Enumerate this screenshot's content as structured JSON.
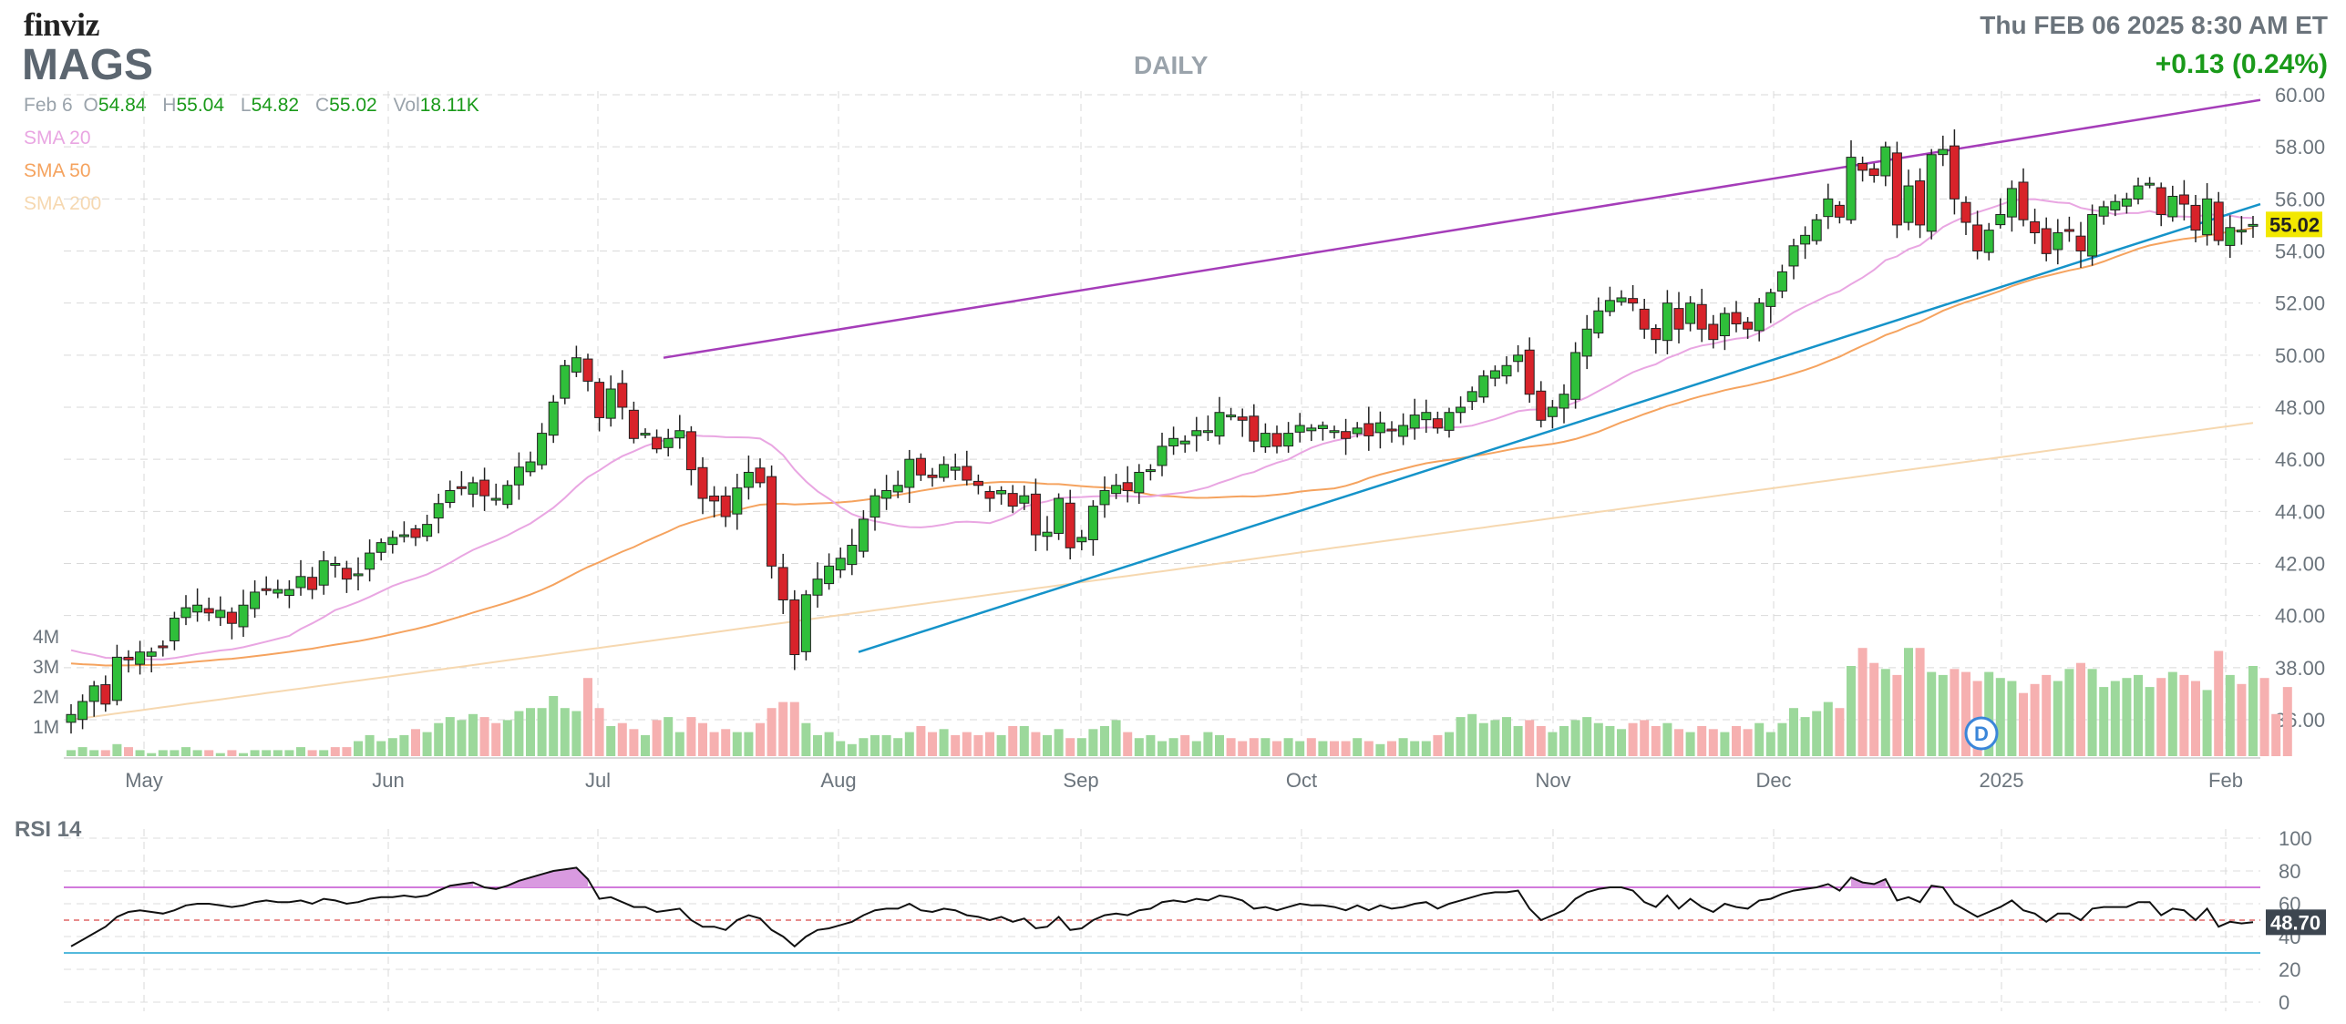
{
  "header": {
    "logo": "finviz",
    "ticker": "MAGS",
    "period": "DAILY",
    "datetime": "Thu FEB 06 2025 8:30 AM ET",
    "change": "+0.13 (0.24%)",
    "ohlc": {
      "date": "Feb 6",
      "open": "54.84",
      "high": "55.04",
      "low": "54.82",
      "close": "55.02",
      "volume": "18.11K"
    }
  },
  "indicators": [
    {
      "label": "SMA 20",
      "color": "#e9a6e2"
    },
    {
      "label": "SMA 50",
      "color": "#f5a35f"
    },
    {
      "label": "SMA 200",
      "color": "#f6d8b0"
    }
  ],
  "chart_data": [
    {
      "type": "candlestick",
      "title": "MAGS",
      "subtitle": "DAILY",
      "x_ticks": [
        "May",
        "Jun",
        "Jul",
        "Aug",
        "Sep",
        "Oct",
        "Nov",
        "Dec",
        "2025",
        "Feb"
      ],
      "y_ticks": [
        "36.00",
        "38.00",
        "40.00",
        "42.00",
        "44.00",
        "46.00",
        "48.00",
        "50.00",
        "52.00",
        "54.00",
        "56.00",
        "58.00",
        "60.00"
      ],
      "ylim": [
        35,
        61
      ],
      "last_price": "55.02",
      "closes": [
        36.2,
        36.7,
        37.3,
        36.6,
        38.4,
        38.3,
        38.6,
        38.6,
        38.8,
        39.9,
        40.3,
        40.4,
        40.1,
        40.2,
        39.7,
        40.4,
        40.9,
        41.0,
        41.0,
        41.0,
        41.5,
        41.0,
        42.1,
        42.0,
        41.4,
        41.6,
        42.4,
        42.8,
        43.0,
        43.1,
        43.0,
        43.5,
        44.3,
        44.8,
        44.9,
        45.1,
        44.6,
        44.5,
        45.0,
        45.7,
        45.9,
        47.0,
        48.2,
        49.6,
        49.9,
        49.0,
        47.6,
        48.7,
        48.0,
        46.8,
        47.0,
        46.4,
        46.8,
        47.1,
        45.6,
        44.5,
        44.4,
        43.8,
        44.9,
        45.5,
        45.1,
        41.9,
        40.6,
        38.5,
        40.8,
        41.4,
        41.9,
        42.2,
        42.7,
        43.7,
        44.6,
        44.8,
        45.0,
        46.0,
        45.4,
        45.3,
        45.8,
        45.7,
        45.2,
        45.0,
        44.5,
        44.8,
        44.2,
        44.6,
        43.1,
        43.2,
        44.5,
        42.6,
        43.0,
        44.2,
        44.8,
        45.0,
        44.8,
        45.5,
        45.6,
        46.5,
        46.8,
        46.7,
        47.1,
        47.1,
        47.8,
        47.7,
        47.5,
        46.7,
        47.0,
        46.5,
        47.0,
        47.3,
        47.2,
        47.3,
        47.1,
        46.8,
        47.2,
        46.9,
        47.4,
        47.1,
        47.3,
        47.7,
        47.8,
        47.2,
        47.8,
        48.0,
        48.6,
        49.2,
        49.4,
        49.6,
        50.0,
        48.5,
        47.5,
        48.0,
        48.5,
        50.1,
        51.0,
        51.7,
        52.1,
        52.2,
        52.0,
        51.0,
        50.6,
        52.0,
        51.0,
        52.0,
        51.0,
        50.6,
        51.6,
        51.2,
        51.0,
        52.0,
        52.4,
        53.2,
        54.2,
        54.6,
        55.2,
        56.0,
        55.3,
        57.6,
        57.1,
        56.9,
        58.0,
        55.0,
        56.5,
        55.0,
        57.7,
        57.9,
        56.0,
        55.1,
        54.0,
        54.8,
        55.4,
        56.4,
        55.2,
        54.7,
        53.9,
        54.7,
        54.8,
        54.0,
        55.4,
        55.7,
        55.9,
        56.0,
        56.5,
        56.6,
        55.4,
        56.1,
        55.8,
        54.8,
        56.0,
        54.4,
        54.9,
        54.8,
        55.02
      ],
      "indicators": {
        "sma20": {
          "start": 38.8,
          "end": 55.0
        },
        "sma50": {
          "start": 38.2,
          "end": 54.6
        },
        "sma200": {
          "start": 36.0,
          "end": 47.4
        }
      },
      "trendlines": [
        {
          "color": "#a53db9",
          "from": "Jul",
          "from_price": 49.9,
          "to": "Feb",
          "to_price": 59.8
        },
        {
          "color": "#1593c9",
          "from": "Aug",
          "from_price": 38.6,
          "to": "Feb",
          "to_price": 55.8
        }
      ]
    },
    {
      "type": "bar",
      "title": "Volume",
      "y_ticks": [
        "4M",
        "3M",
        "2M",
        "1M"
      ],
      "ylim": [
        0,
        4.5
      ],
      "volumes_m": [
        0.2,
        0.3,
        0.2,
        0.2,
        0.4,
        0.3,
        0.2,
        0.1,
        0.2,
        0.2,
        0.3,
        0.2,
        0.2,
        0.1,
        0.2,
        0.1,
        0.2,
        0.2,
        0.2,
        0.2,
        0.3,
        0.2,
        0.2,
        0.3,
        0.3,
        0.5,
        0.7,
        0.5,
        0.6,
        0.7,
        0.9,
        0.8,
        1.1,
        1.3,
        1.2,
        1.4,
        1.3,
        1.1,
        1.2,
        1.5,
        1.6,
        1.6,
        2.0,
        1.6,
        1.5,
        2.6,
        1.6,
        1.0,
        1.1,
        0.9,
        0.7,
        1.2,
        1.3,
        0.8,
        1.3,
        1.1,
        0.8,
        0.9,
        0.8,
        0.8,
        1.1,
        1.6,
        1.8,
        1.8,
        1.1,
        0.7,
        0.8,
        0.5,
        0.4,
        0.6,
        0.7,
        0.7,
        0.6,
        0.8,
        1.0,
        0.8,
        0.9,
        0.7,
        0.8,
        0.7,
        0.8,
        0.7,
        1.0,
        1.0,
        0.8,
        0.7,
        0.9,
        0.6,
        0.6,
        0.9,
        1.0,
        1.2,
        0.8,
        0.6,
        0.7,
        0.5,
        0.6,
        0.7,
        0.5,
        0.8,
        0.7,
        0.6,
        0.5,
        0.6,
        0.6,
        0.5,
        0.6,
        0.5,
        0.6,
        0.5,
        0.5,
        0.5,
        0.6,
        0.5,
        0.4,
        0.5,
        0.6,
        0.5,
        0.5,
        0.7,
        0.8,
        1.3,
        1.4,
        1.1,
        1.2,
        1.3,
        1.0,
        1.2,
        1.0,
        0.8,
        1.0,
        1.2,
        1.3,
        1.1,
        1.0,
        0.9,
        1.1,
        1.2,
        1.0,
        1.1,
        0.9,
        0.8,
        1.0,
        0.9,
        0.8,
        1.0,
        0.9,
        1.1,
        0.8,
        1.1,
        1.6,
        1.3,
        1.5,
        1.8,
        1.6,
        3.0,
        3.6,
        3.1,
        2.9,
        2.7,
        3.6,
        3.6,
        2.8,
        2.7,
        2.9,
        2.8,
        2.5,
        2.8,
        2.6,
        2.5,
        2.1,
        2.4,
        2.7,
        2.5,
        2.9,
        3.1,
        2.9,
        2.3,
        2.5,
        2.6,
        2.7,
        2.3,
        2.6,
        2.8,
        2.7,
        2.5,
        2.2,
        3.5,
        2.7,
        2.4,
        3.0,
        2.6,
        1.4,
        2.3
      ]
    },
    {
      "type": "line",
      "title": "RSI 14",
      "y_ticks": [
        "100",
        "80",
        "60",
        "40",
        "20",
        "0"
      ],
      "ylim": [
        0,
        100
      ],
      "last_value": "48.70",
      "levels": {
        "overbought": 70,
        "mid": 50,
        "oversold": 30
      },
      "values": [
        34,
        38,
        42,
        46,
        52,
        55,
        56,
        55,
        54,
        56,
        59,
        60,
        60,
        59,
        58,
        59,
        61,
        62,
        61,
        61,
        62,
        60,
        63,
        62,
        60,
        61,
        63,
        64,
        64,
        65,
        64,
        65,
        68,
        71,
        72,
        73,
        70,
        69,
        71,
        74,
        76,
        78,
        80,
        81,
        82,
        75,
        63,
        64,
        61,
        58,
        58,
        55,
        56,
        57,
        50,
        46,
        46,
        44,
        50,
        53,
        51,
        44,
        40,
        34,
        40,
        44,
        45,
        47,
        49,
        53,
        56,
        57,
        57,
        60,
        56,
        55,
        57,
        56,
        53,
        52,
        50,
        52,
        49,
        51,
        45,
        46,
        52,
        44,
        45,
        50,
        53,
        54,
        53,
        56,
        57,
        61,
        62,
        61,
        63,
        62,
        65,
        64,
        62,
        57,
        58,
        56,
        58,
        60,
        59,
        59,
        58,
        56,
        59,
        56,
        59,
        57,
        58,
        60,
        61,
        57,
        60,
        62,
        64,
        66,
        67,
        67,
        68,
        57,
        50,
        53,
        56,
        63,
        67,
        69,
        70,
        70,
        68,
        61,
        58,
        65,
        57,
        63,
        58,
        55,
        60,
        58,
        57,
        62,
        63,
        66,
        68,
        69,
        70,
        72,
        68,
        76,
        73,
        72,
        75,
        62,
        64,
        61,
        71,
        70,
        60,
        56,
        52,
        55,
        58,
        62,
        56,
        54,
        49,
        54,
        54,
        50,
        57,
        58,
        58,
        58,
        61,
        61,
        53,
        57,
        56,
        50,
        57,
        46,
        49,
        48,
        48.7
      ]
    }
  ]
}
